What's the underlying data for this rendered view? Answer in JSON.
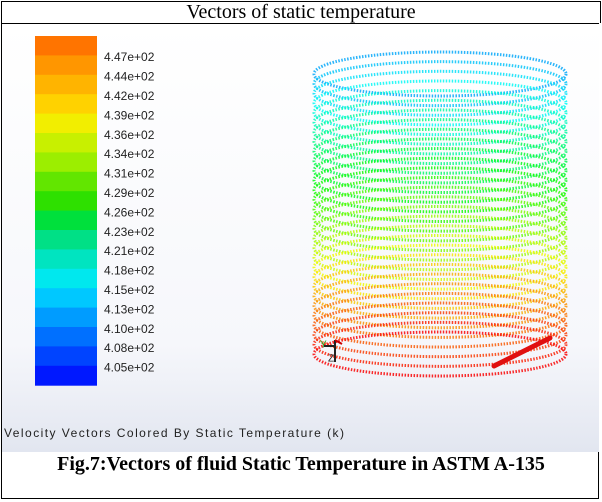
{
  "header": {
    "title": "Vectors of static temperature"
  },
  "figure": {
    "colorbar_labels": [
      "4.47e+02",
      "4.44e+02",
      "4.42e+02",
      "4.39e+02",
      "4.36e+02",
      "4.34e+02",
      "4.31e+02",
      "4.29e+02",
      "4.26e+02",
      "4.23e+02",
      "4.21e+02",
      "4.18e+02",
      "4.15e+02",
      "4.13e+02",
      "4.10e+02",
      "4.08e+02",
      "4.05e+02"
    ],
    "axis_y": "Y",
    "axis_z": "Z",
    "image_caption": "Velocity Vectors Colored By Static Temperature (k)"
  },
  "caption": {
    "text": "Fig.7:Vectors of fluid Static Temperature in ASTM A-135"
  }
}
